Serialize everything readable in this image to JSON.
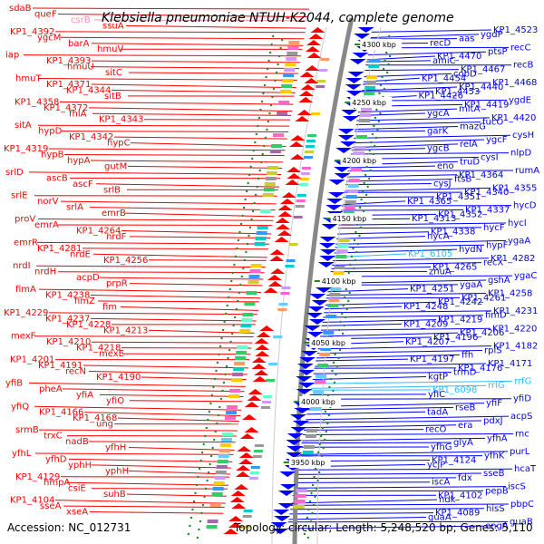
{
  "title": "Klebsiella pneumoniae NTUH-K2044, complete genome",
  "footer": {
    "accession": "Accession: NC_012731",
    "summary": "Topology: circular; Length: 5,248,520 bp; Genes: 5,110"
  },
  "colors": {
    "left_strand": "#ff0000",
    "right_strand": "#0000ff",
    "rna": "#ff8fb0",
    "rna_right": "#33bbff",
    "backbone": "#888888",
    "tick_dots": "#228822"
  },
  "position_markers": [
    "4300 kbp",
    "4250 kbp",
    "4200 kbp",
    "4150 kbp",
    "4100 kbp",
    "4050 kbp",
    "4000 kbp",
    "3950 kbp"
  ],
  "left_labels": [
    "sdaB",
    "queF",
    "csrB",
    "ssuA",
    "KP1_4392",
    "ygcM",
    "barA",
    "hmuV",
    "iap",
    "KP1_4393",
    "hmuU",
    "sitC",
    "hmuT",
    "KP1_4371",
    "KP1_4344",
    "sitB",
    "KP1_4358",
    "KP1_4372",
    "fhlA",
    "KP1_4343",
    "sitA",
    "hypD",
    "KP1_4342",
    "hypC",
    "KP1_4319",
    "hypB",
    "hypA",
    "gutM",
    "srlD",
    "ascB",
    "ascF",
    "srlB",
    "srlE",
    "norV",
    "srlA",
    "emrB",
    "proV",
    "emrA",
    "KP1_4264",
    "nrdF",
    "emrR",
    "KP1_4281",
    "nrdE",
    "KP1_4256",
    "nrdI",
    "nrdH",
    "acpD",
    "prpR",
    "fimA",
    "KP1_4238",
    "fimZ",
    "fim",
    "KP1_4229",
    "KP1_4237",
    "KP1_4228",
    "KP1_4213",
    "mexF",
    "KP1_4210",
    "KP1_4218",
    "mexE",
    "KP1_4201",
    "KP1_4191",
    "recN",
    "KP1_4190",
    "yfiB",
    "pheA",
    "yfiA",
    "yfiO",
    "yfiQ",
    "KP1_4166",
    "KP1_4168",
    "ung",
    "srmB",
    "trxC",
    "nadB",
    "yfhH",
    "yfhL",
    "yfhD",
    "yphH",
    "yphH",
    "KP1_4129",
    "hmpA",
    "csiE",
    "suhB",
    "KP1_4104",
    "sseA",
    "xseA"
  ],
  "right_labels": [
    "KP1_4523",
    "ygdP",
    "aas",
    "recD",
    "recC",
    "ptsP",
    "KP1_4470",
    "amiC",
    "recB",
    "KP1_4467",
    "cobD",
    "KP1_4454",
    "KP1_4468",
    "KP1_4440",
    "KP1_4453",
    "KP1_4426",
    "ygdE",
    "KP1_4419",
    "mltA",
    "ygcA",
    "KP1_4420",
    "fucO",
    "mazG",
    "garK",
    "cysH",
    "ygcF",
    "relA",
    "ygcB",
    "nlpD",
    "cysI",
    "truD",
    "eno",
    "rumA",
    "KP1_4364",
    "ftsB",
    "cysJ",
    "KP1_4355",
    "KP1_4340",
    "KP1_4351",
    "KP1_4365",
    "hycD",
    "KP1_4337",
    "KP1_4352",
    "KP1_4313",
    "hycI",
    "hycF",
    "KP1_4338",
    "hycA",
    "ygaA",
    "hypF",
    "hydN",
    "KP1_6105",
    "KP1_4282",
    "recX",
    "KP1_4265",
    "znuA",
    "ygaC",
    "gshA",
    "ygaA",
    "KP1_4251",
    "KP1_4258",
    "KP1_4261",
    "KP1_4242",
    "KP1_4248",
    "KP1_4231",
    "fimD",
    "KP1_4219",
    "KP1_4209",
    "KP1_4220",
    "KP1_4206",
    "KP1_4196",
    "KP1_4207",
    "KP1_4182",
    "rplS",
    "ffh",
    "KP1_4197",
    "KP1_4171",
    "KP1_4176",
    "trmD",
    "kgtP",
    "rrfG",
    "rrlG",
    "KP1_6098",
    "yfiC",
    "yfiD",
    "yfiF",
    "rseB",
    "tadA",
    "acpS",
    "pdxJ",
    "era",
    "recO",
    "rnc",
    "yfhA",
    "glyA",
    "yfhG",
    "purL",
    "yfhK",
    "KP1_4124",
    "ycjP",
    "hcaT",
    "sseB",
    "fdx",
    "iscA",
    "iscS",
    "pepB",
    "KP1_4102",
    "ndk",
    "pbpC",
    "hisS",
    "KP1_4089",
    "guaA",
    "guaB",
    "engA"
  ]
}
